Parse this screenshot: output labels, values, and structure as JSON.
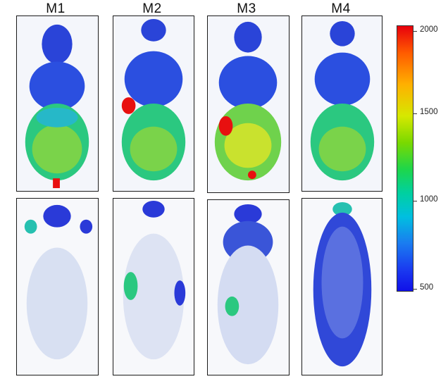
{
  "columns": [
    {
      "label": "M1"
    },
    {
      "label": "M2"
    },
    {
      "label": "M3"
    },
    {
      "label": "M4"
    }
  ],
  "colorbar": {
    "ticks": [
      "2000",
      "1500",
      "1000",
      "500"
    ],
    "min": 500,
    "max": 2000,
    "colors": [
      "#e8000c",
      "#ffb000",
      "#7ad900",
      "#00bfe0",
      "#1a3af0"
    ]
  },
  "rows": [
    {
      "description_hint": "top-row"
    },
    {
      "description_hint": "bottom-row"
    }
  ]
}
